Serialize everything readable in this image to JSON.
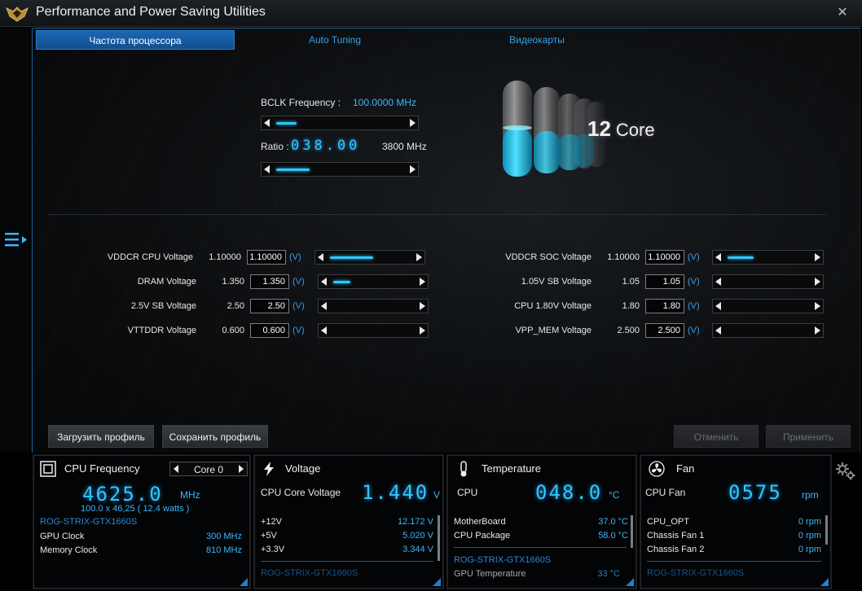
{
  "app": {
    "title": "Performance and Power Saving Utilities"
  },
  "tabs": [
    {
      "label": "Частота процессора"
    },
    {
      "label": "Auto Tuning"
    },
    {
      "label": "Видеокарты"
    }
  ],
  "cpu": {
    "bclk_label": "BCLK Frequency :",
    "bclk_value": "100.0000  MHz",
    "bclk_slider_level": 0.15,
    "ratio_label": "Ratio :",
    "ratio_value": "038.00",
    "ratio_mhz": "3800 MHz",
    "ratio_slider_level": 0.25,
    "core_number": "12",
    "core_word": "Core"
  },
  "voltages_left": [
    {
      "name": "VDDCR CPU Voltage",
      "current": "1.10000",
      "input": "1.10000",
      "unit": "(V)",
      "level": 0.5
    },
    {
      "name": "DRAM Voltage",
      "current": "1.350",
      "input": "1.350",
      "unit": "(V)",
      "level": 0.2
    },
    {
      "name": "2.5V SB Voltage",
      "current": "2.50",
      "input": "2.50",
      "unit": "(V)",
      "level": 0
    },
    {
      "name": "VTTDDR Voltage",
      "current": "0.600",
      "input": "0.600",
      "unit": "(V)",
      "level": 0
    }
  ],
  "voltages_right": [
    {
      "name": "VDDCR SOC Voltage",
      "current": "1.10000",
      "input": "1.10000",
      "unit": "(V)",
      "level": 0.3
    },
    {
      "name": "1.05V SB Voltage",
      "current": "1.05",
      "input": "1.05",
      "unit": "(V)",
      "level": 0
    },
    {
      "name": "CPU 1.80V Voltage",
      "current": "1.80",
      "input": "1.80",
      "unit": "(V)",
      "level": 0
    },
    {
      "name": "VPP_MEM Voltage",
      "current": "2.500",
      "input": "2.500",
      "unit": "(V)",
      "level": 0
    }
  ],
  "buttons": {
    "load_profile": "Загрузить профиль",
    "save_profile": "Сохранить профиль",
    "cancel": "Отменить",
    "apply": "Применить"
  },
  "dashboard": {
    "freq": {
      "title": "CPU Frequency",
      "core_select": "Core 0",
      "value": "4625.0",
      "unit": "MHz",
      "detail": "100.0  x  46,25 ( 12.4   watts )",
      "section": "ROG-STRIX-GTX1660S",
      "rows": [
        {
          "label": "GPU Clock",
          "value": "300 MHz"
        },
        {
          "label": "Memory Clock",
          "value": "810 MHz"
        }
      ]
    },
    "voltage": {
      "title": "Voltage",
      "main_label": "CPU Core Voltage",
      "value": "1.440",
      "unit": "V",
      "rows": [
        {
          "label": "+12V",
          "value": "12.172  V"
        },
        {
          "label": "+5V",
          "value": "5.020  V"
        },
        {
          "label": "+3.3V",
          "value": "3.344  V"
        }
      ],
      "section": "ROG-STRIX-GTX1660S"
    },
    "temperature": {
      "title": "Temperature",
      "main_label": "CPU",
      "value": "048.0",
      "unit": "°C",
      "rows": [
        {
          "label": "MotherBoard",
          "value": "37.0 °C"
        },
        {
          "label": "CPU Package",
          "value": "58.0 °C"
        }
      ],
      "section": "ROG-STRIX-GTX1660S",
      "cut_row_label": "GPU Temperature",
      "cut_row_value": "33 °C"
    },
    "fan": {
      "title": "Fan",
      "main_label": "CPU Fan",
      "value": "0575",
      "unit": "rpm",
      "rows": [
        {
          "label": "CPU_OPT",
          "value": "0   rpm"
        },
        {
          "label": "Chassis Fan 1",
          "value": "0   rpm"
        },
        {
          "label": "Chassis Fan 2",
          "value": "0   rpm"
        }
      ],
      "section": "ROG-STRIX-GTX1660S"
    }
  }
}
